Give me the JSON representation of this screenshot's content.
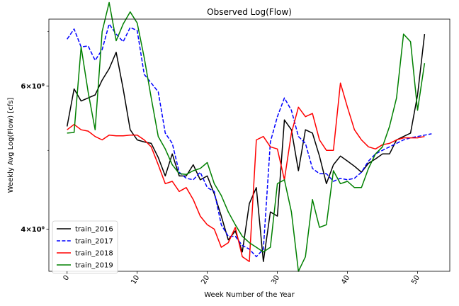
{
  "chart_data": {
    "type": "line",
    "title": "Observed Log(Flow)",
    "xlabel": "Week Number of the Year",
    "ylabel": "Weekly Avg Log(Flow) [cfs]",
    "y_scale": "log",
    "xlim": [
      -2.6,
      54.6
    ],
    "ylim": [
      3.55,
      7.25
    ],
    "x_ticks": [
      0,
      10,
      20,
      30,
      40,
      50
    ],
    "x_tick_labels": [
      "0",
      "10",
      "20",
      "30",
      "40",
      "50"
    ],
    "y_ticks": [
      4,
      6
    ],
    "y_tick_labels": [
      "4×10⁰",
      "6×10⁰"
    ],
    "y_minor_ticks": [
      5,
      7
    ],
    "grid": false,
    "legend_position": "lower-left",
    "series": [
      {
        "name": "train_2016",
        "color": "#000000",
        "dash": "solid",
        "x": [
          0,
          1,
          2,
          3,
          4,
          5,
          6,
          7,
          8,
          9,
          10,
          11,
          12,
          13,
          14,
          15,
          16,
          17,
          18,
          19,
          20,
          21,
          22,
          23,
          24,
          25,
          26,
          27,
          28,
          29,
          30,
          31,
          32,
          33,
          34,
          35,
          36,
          37,
          38,
          39,
          40,
          41,
          42,
          43,
          44,
          45,
          46,
          47,
          48,
          49,
          50,
          51
        ],
        "y": [
          5.35,
          5.95,
          5.75,
          5.8,
          5.85,
          6.1,
          6.3,
          6.6,
          5.95,
          5.3,
          5.15,
          5.12,
          5.1,
          4.9,
          4.65,
          4.95,
          4.65,
          4.65,
          4.8,
          4.6,
          4.65,
          4.42,
          4.15,
          3.88,
          3.98,
          3.75,
          4.3,
          4.5,
          3.65,
          4.2,
          4.15,
          5.45,
          5.3,
          4.72,
          5.3,
          5.25,
          4.92,
          4.55,
          4.8,
          4.92,
          4.85,
          4.78,
          4.7,
          4.82,
          4.88,
          4.95,
          4.95,
          5.15,
          5.2,
          5.25,
          5.85,
          6.95
        ]
      },
      {
        "name": "train_2017",
        "color": "#0000ff",
        "dash": "dashed",
        "x": [
          0,
          1,
          2,
          3,
          4,
          5,
          6,
          7,
          8,
          9,
          10,
          11,
          12,
          13,
          14,
          15,
          16,
          17,
          18,
          19,
          20,
          21,
          22,
          23,
          24,
          25,
          26,
          27,
          28,
          29,
          30,
          31,
          32,
          33,
          34,
          35,
          36,
          37,
          38,
          39,
          40,
          41,
          42,
          43,
          44,
          45,
          46,
          47,
          48,
          49,
          50,
          51,
          52
        ],
        "y": [
          6.85,
          7.05,
          6.7,
          6.72,
          6.45,
          6.65,
          7.15,
          6.95,
          6.8,
          7.08,
          7.02,
          6.2,
          6.05,
          5.9,
          5.25,
          5.1,
          4.7,
          4.62,
          4.6,
          4.7,
          4.5,
          4.45,
          4.05,
          3.92,
          3.92,
          3.82,
          3.78,
          3.7,
          3.78,
          5.12,
          5.5,
          5.8,
          5.6,
          5.2,
          5.1,
          4.75,
          4.68,
          4.68,
          4.58,
          4.62,
          4.6,
          4.62,
          4.7,
          4.85,
          4.95,
          5.0,
          5.05,
          5.1,
          5.15,
          5.18,
          5.2,
          5.22,
          5.24
        ]
      },
      {
        "name": "train_2018",
        "color": "#ff0000",
        "dash": "solid",
        "x": [
          0,
          1,
          2,
          3,
          4,
          5,
          6,
          7,
          8,
          9,
          10,
          11,
          12,
          13,
          14,
          15,
          16,
          17,
          18,
          19,
          20,
          21,
          22,
          23,
          24,
          25,
          26,
          27,
          28,
          29,
          30,
          31,
          32,
          33,
          34,
          35,
          36,
          37,
          38,
          39,
          40,
          41,
          42,
          43,
          44,
          45,
          46,
          47,
          48,
          49,
          50,
          51
        ],
        "y": [
          5.3,
          5.38,
          5.3,
          5.28,
          5.2,
          5.15,
          5.22,
          5.21,
          5.21,
          5.22,
          5.22,
          5.15,
          5.05,
          4.8,
          4.55,
          4.58,
          4.45,
          4.5,
          4.35,
          4.15,
          4.05,
          4.0,
          3.8,
          3.85,
          4.02,
          3.7,
          3.65,
          5.15,
          5.2,
          5.05,
          5.02,
          4.6,
          5.25,
          5.65,
          5.5,
          5.55,
          5.15,
          5.0,
          5.0,
          6.05,
          5.65,
          5.3,
          5.15,
          5.05,
          5.02,
          5.08,
          5.1,
          5.15,
          5.18,
          5.18,
          5.18,
          5.2
        ]
      },
      {
        "name": "train_2019",
        "color": "#008000",
        "dash": "solid",
        "x": [
          0,
          1,
          2,
          3,
          4,
          5,
          6,
          7,
          8,
          9,
          10,
          11,
          12,
          13,
          14,
          15,
          16,
          17,
          18,
          19,
          20,
          21,
          22,
          23,
          24,
          25,
          26,
          27,
          28,
          29,
          30,
          31,
          32,
          33,
          34,
          35,
          36,
          37,
          38,
          39,
          40,
          41,
          42,
          43,
          44,
          45,
          46,
          47,
          48,
          49,
          50,
          51
        ],
        "y": [
          5.25,
          5.26,
          6.7,
          5.9,
          5.3,
          7.0,
          7.6,
          6.82,
          7.15,
          7.4,
          7.17,
          6.5,
          5.8,
          5.2,
          5.02,
          4.8,
          4.68,
          4.67,
          4.72,
          4.75,
          4.83,
          4.55,
          4.4,
          4.2,
          4.05,
          3.92,
          3.85,
          3.8,
          3.75,
          3.8,
          4.55,
          4.6,
          4.2,
          3.55,
          3.7,
          4.35,
          4.02,
          4.05,
          4.72,
          4.55,
          4.58,
          4.5,
          4.5,
          4.75,
          4.95,
          5.05,
          5.35,
          5.8,
          6.95,
          6.8,
          5.6,
          6.4
        ]
      }
    ]
  }
}
